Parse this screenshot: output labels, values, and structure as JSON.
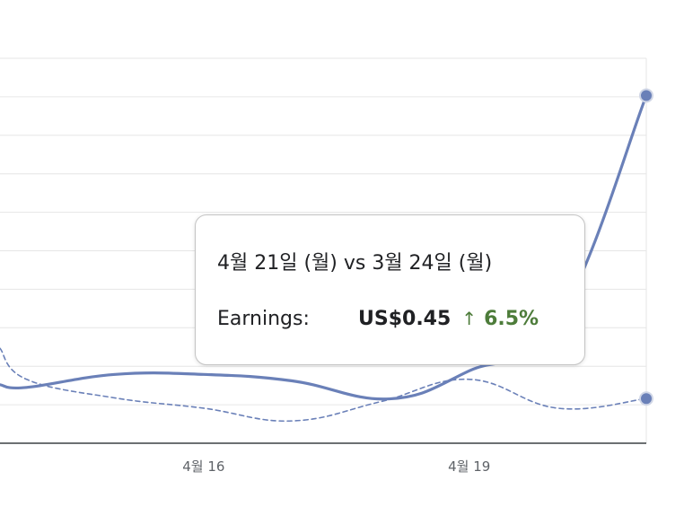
{
  "chart_data": {
    "type": "line",
    "title": "",
    "xlabel": "",
    "ylabel": "",
    "x_ticks": [
      "4월 16",
      "4월 19"
    ],
    "series": [
      {
        "style": "solid",
        "color": "#6a80b8",
        "points": [
          {
            "x": 13.7,
            "y": 0.076
          },
          {
            "x": 14.0,
            "y": 0.0725
          },
          {
            "x": 15.0,
            "y": 0.0894
          },
          {
            "x": 16.0,
            "y": 0.0894
          },
          {
            "x": 17.0,
            "y": 0.081
          },
          {
            "x": 18.1,
            "y": 0.0576
          },
          {
            "x": 19.0,
            "y": 0.094
          },
          {
            "x": 20.0,
            "y": 0.1595
          },
          {
            "x": 21.0,
            "y": 0.4516
          }
        ]
      },
      {
        "style": "dashed",
        "color": "#6a80b8",
        "points": [
          {
            "x": 13.7,
            "y": 0.1233
          },
          {
            "x": 14.0,
            "y": 0.083
          },
          {
            "x": 15.0,
            "y": 0.0588
          },
          {
            "x": 16.0,
            "y": 0.0455
          },
          {
            "x": 17.0,
            "y": 0.029
          },
          {
            "x": 18.0,
            "y": 0.054
          },
          {
            "x": 19.0,
            "y": 0.083
          },
          {
            "x": 20.0,
            "y": 0.0455
          },
          {
            "x": 21.0,
            "y": 0.058
          }
        ]
      }
    ],
    "x_range": [
      13.7,
      21.0
    ],
    "y_range": [
      0,
      0.5
    ],
    "grid": true,
    "tooltip": {
      "header": "4월 21일 (월) vs 3월 24일 (월)",
      "metric_label": "Earnings:",
      "metric_value": "US$0.45",
      "arrow": "↑",
      "change": "6.5%",
      "change_color": "#4d7c3a"
    }
  }
}
